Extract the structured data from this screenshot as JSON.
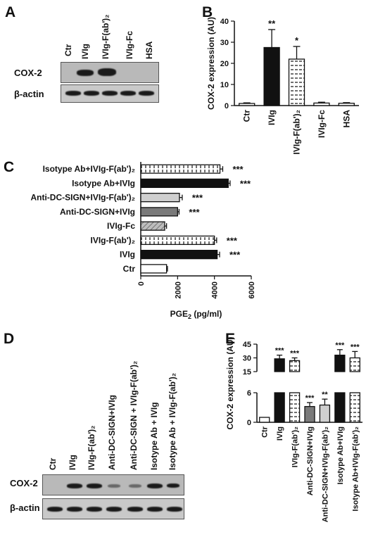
{
  "panels": {
    "A": {
      "letter": "A",
      "lanes": [
        "Ctr",
        "IVIg",
        "IVIg-F(ab')₂",
        "IVIg-Fc",
        "HSA"
      ],
      "rows": [
        "COX-2",
        "β-actin"
      ]
    },
    "B": {
      "letter": "B"
    },
    "C": {
      "letter": "C"
    },
    "D": {
      "letter": "D",
      "lanes": [
        "Ctr",
        "IVIg",
        "IVIg-F(ab')₂",
        "Anti-DC-SIGN+IVIg",
        "Anti-DC-SIGN + IVIg-F(ab')₂",
        "Isotype Ab + IVIg",
        "Isotype Ab + IVIg-F(ab')₂"
      ],
      "rows": [
        "COX-2",
        "β-actin"
      ]
    },
    "E": {
      "letter": "E"
    }
  },
  "chart_data": [
    {
      "panel": "B",
      "type": "bar",
      "ylabel": "COX-2 expression (AU)",
      "categories": [
        "Ctr",
        "IVIg",
        "IVIg-F(ab')₂",
        "IVIg-Fc",
        "HSA"
      ],
      "values": [
        1,
        27.5,
        22,
        1.2,
        1.1
      ],
      "errors": [
        0.3,
        8.5,
        6,
        0.4,
        0.3
      ],
      "significance": [
        "",
        "**",
        "*",
        "",
        ""
      ],
      "fills": [
        "white",
        "black",
        "dashed",
        "white",
        "white"
      ],
      "ylim": [
        0,
        40
      ]
    },
    {
      "panel": "C",
      "type": "bar",
      "orientation": "horizontal",
      "xlabel": "PGE₂ (pg/ml)",
      "categories": [
        "Isotype Ab+IVIg-F(ab')₂",
        "Isotype Ab+IVIg",
        "Anti-DC-SIGN+IVIg-F(ab')₂",
        "Anti-DC-SIGN+IVIg",
        "IVIg-Fc",
        "IVIg-F(ab')₂",
        "IVIg",
        "Ctr"
      ],
      "values": [
        4300,
        4750,
        2100,
        2000,
        1300,
        4000,
        4150,
        1400
      ],
      "errors": [
        150,
        100,
        150,
        80,
        100,
        120,
        130,
        50
      ],
      "significance": [
        "***",
        "***",
        "***",
        "***",
        "",
        "***",
        "***",
        ""
      ],
      "fills": [
        "dashed",
        "black",
        "lightgray",
        "gray",
        "hatched",
        "dashed",
        "black",
        "white"
      ],
      "xticks": [
        0,
        2000,
        4000,
        6000
      ],
      "xlim": [
        0,
        6000
      ]
    },
    {
      "panel": "E",
      "type": "bar",
      "ylabel": "COX-2 expression (AU)",
      "axis_break": true,
      "categories": [
        "Ctr",
        "IVIg",
        "IVIg-F(ab')₂",
        "Anti-DC-SIGN+IVIg",
        "Anti-DC-SIGN+IVIg-F(ab')₂",
        "Isotype Ab+IVIg",
        "Isotype Ab+IVIg-F(ab')₂"
      ],
      "values": [
        1,
        29,
        27,
        3.2,
        3.5,
        33,
        30
      ],
      "errors": [
        0,
        4,
        3,
        0.8,
        1.2,
        6,
        7
      ],
      "significance": [
        "",
        "***",
        "***",
        "***",
        "**",
        "***",
        "***"
      ],
      "fills": [
        "white",
        "black",
        "dashed",
        "gray",
        "lightgray",
        "black",
        "dashed"
      ],
      "lower_ylim": [
        0,
        6
      ],
      "upper_ylim": [
        15,
        45
      ],
      "yticks_lower": [
        0,
        6
      ],
      "yticks_upper": [
        15,
        30,
        45
      ]
    }
  ]
}
